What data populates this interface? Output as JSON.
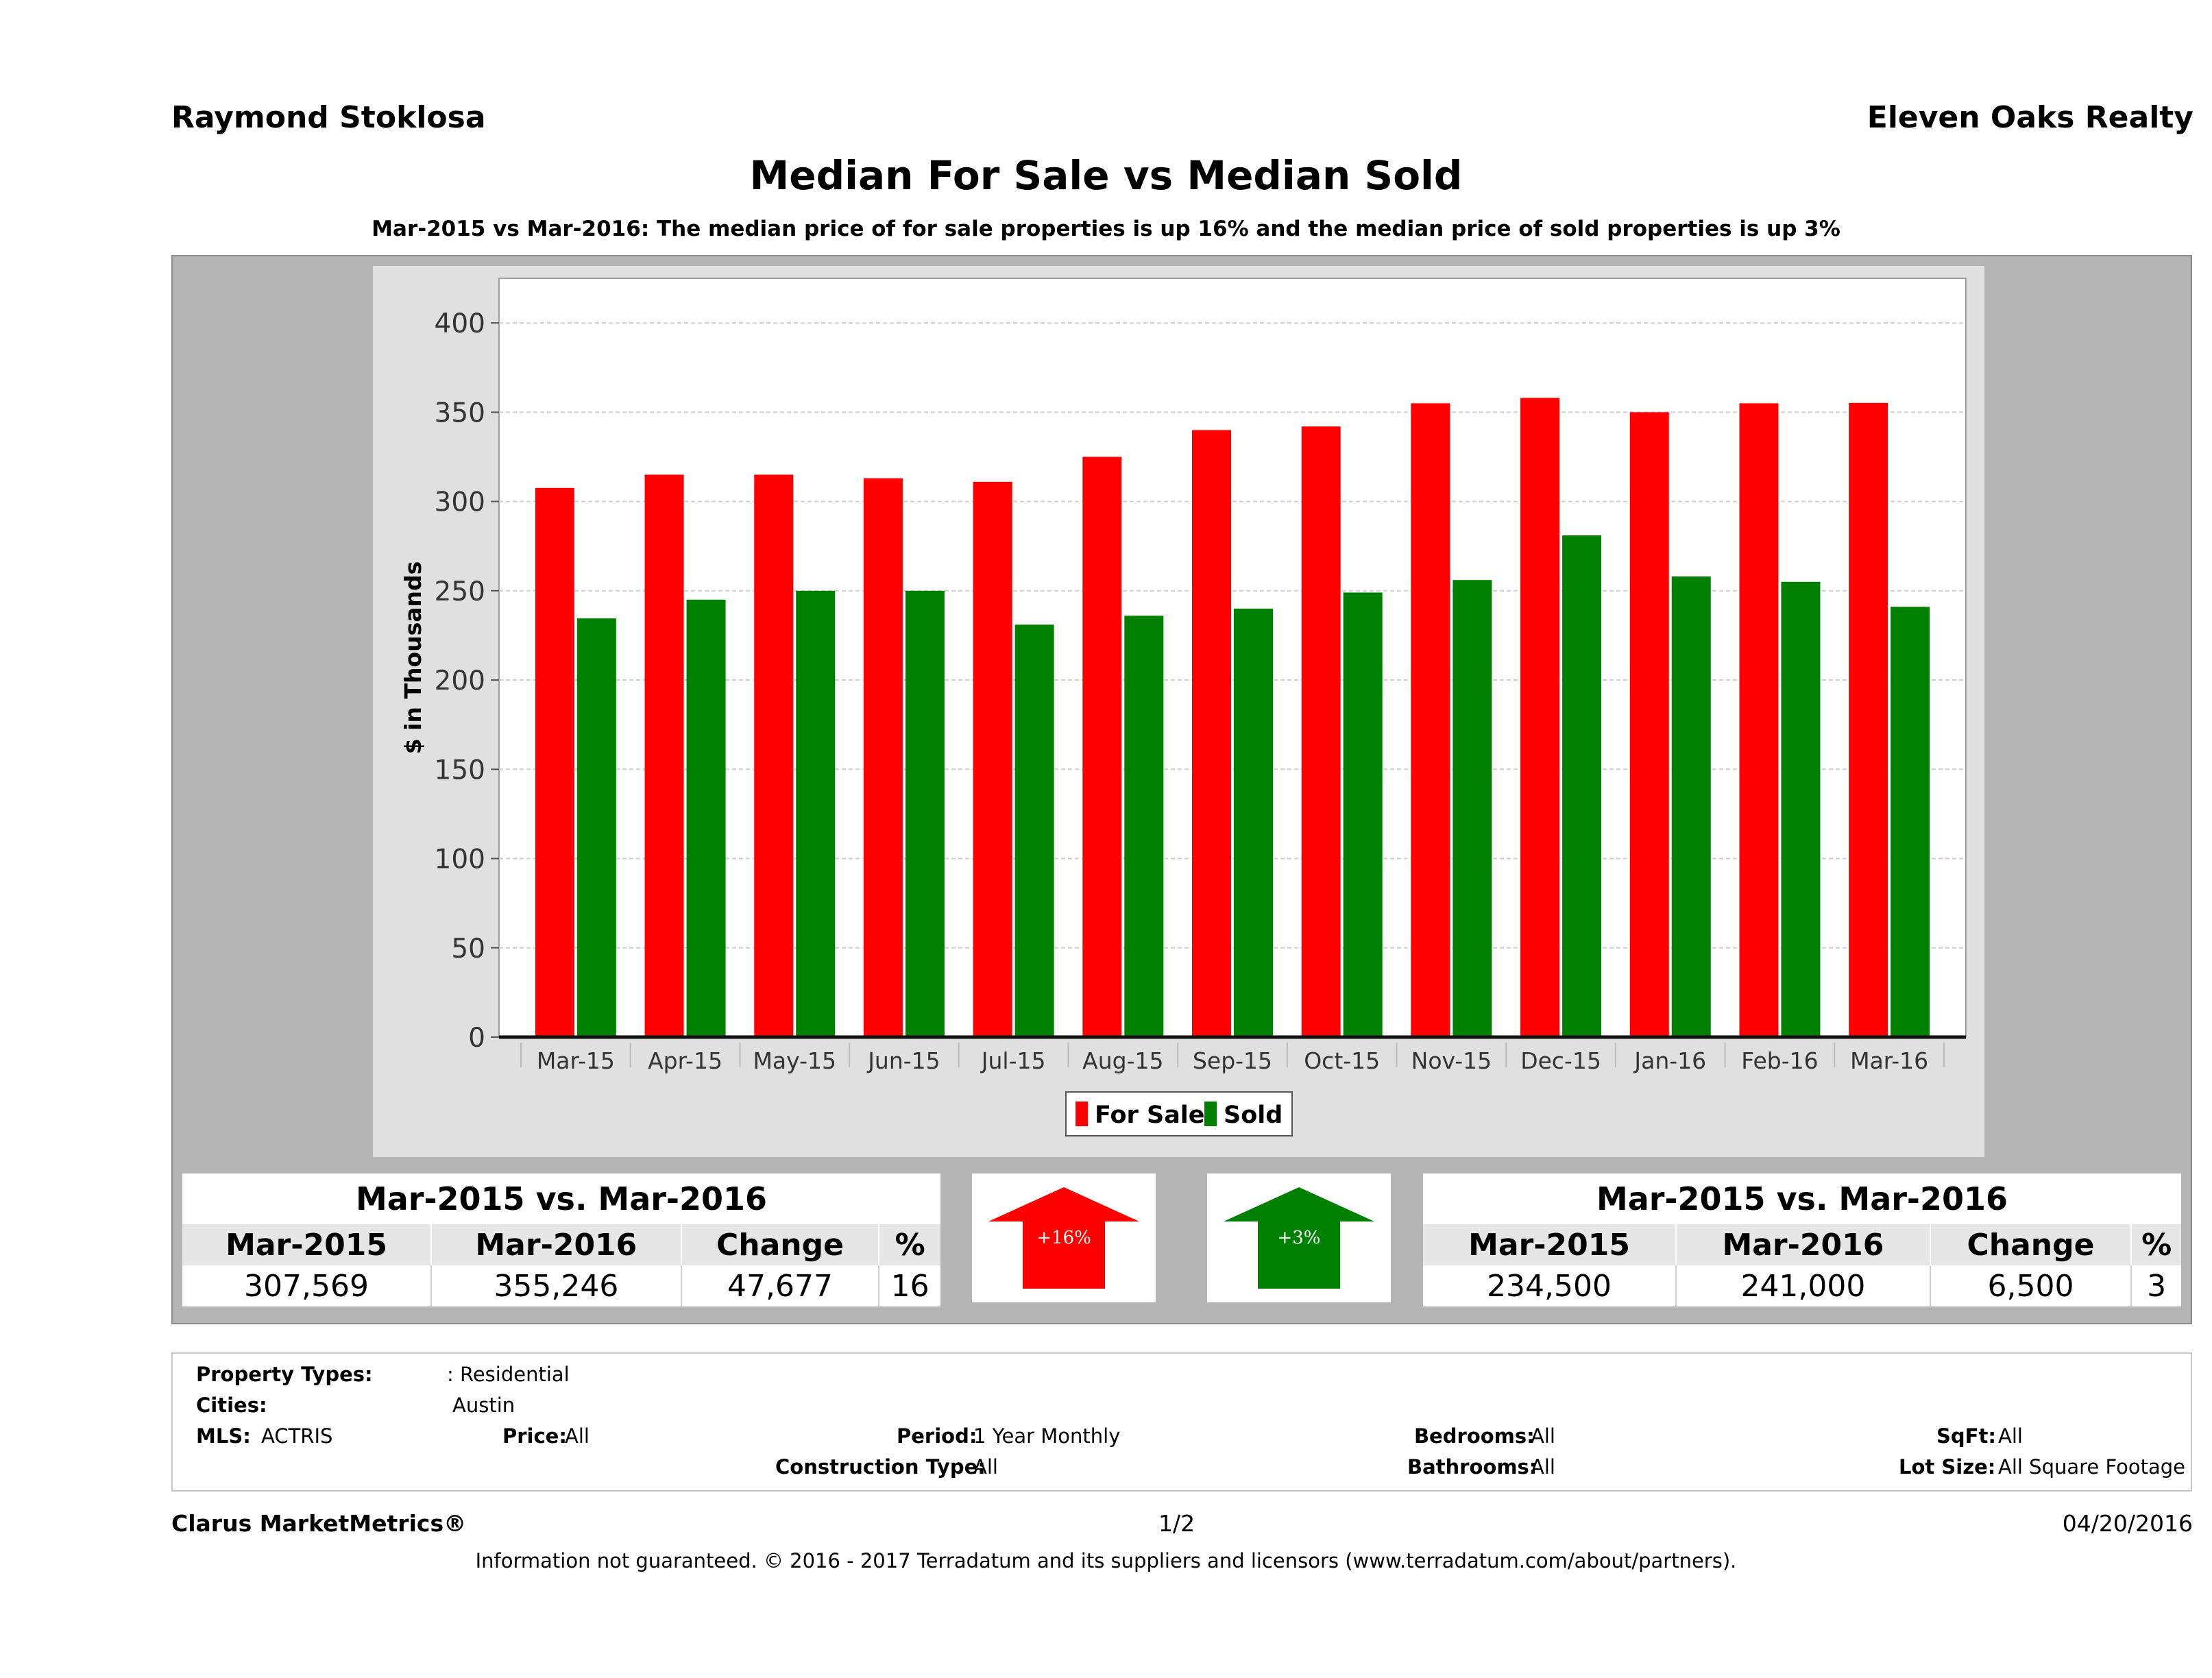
{
  "header": {
    "agent": "Raymond Stoklosa",
    "company": "Eleven Oaks Realty",
    "title": "Median For Sale vs Median Sold",
    "subtitle": "Mar-2015 vs Mar-2016: The median price of for sale properties is up 16% and the median price of sold properties is up 3%"
  },
  "chart_data": {
    "type": "bar",
    "categories": [
      "Mar-15",
      "Apr-15",
      "May-15",
      "Jun-15",
      "Jul-15",
      "Aug-15",
      "Sep-15",
      "Oct-15",
      "Nov-15",
      "Dec-15",
      "Jan-16",
      "Feb-16",
      "Mar-16"
    ],
    "series": [
      {
        "name": "For Sale",
        "color": "#ff0000",
        "values": [
          307.6,
          315,
          315,
          313,
          311,
          325,
          340,
          342,
          355,
          358,
          350,
          355,
          355.2
        ]
      },
      {
        "name": "Sold",
        "color": "#008000",
        "values": [
          234.5,
          245,
          250,
          250,
          231,
          236,
          240,
          249,
          256,
          281,
          258,
          255,
          241
        ]
      }
    ],
    "ylabel": "$ in Thousands",
    "xlabel": "",
    "ylim": [
      0,
      425
    ],
    "yticks": [
      0,
      50,
      100,
      150,
      200,
      250,
      300,
      350,
      400
    ],
    "grid": true,
    "legend": "bottom-center"
  },
  "summary_left": {
    "title": "Mar-2015 vs. Mar-2016",
    "headers": [
      "Mar-2015",
      "Mar-2016",
      "Change",
      "%"
    ],
    "values": [
      "307,569",
      "355,246",
      "47,677",
      "16"
    ]
  },
  "summary_right": {
    "title": "Mar-2015 vs. Mar-2016",
    "headers": [
      "Mar-2015",
      "Mar-2016",
      "Change",
      "%"
    ],
    "values": [
      "234,500",
      "241,000",
      "6,500",
      "3"
    ]
  },
  "arrows": {
    "for_sale": {
      "label": "+16%",
      "color": "#ff0000"
    },
    "sold": {
      "label": "+3%",
      "color": "#008000"
    }
  },
  "filters": {
    "property_types_label": "Property Types:",
    "property_types_value": ": Residential",
    "cities_label": "Cities:",
    "cities_value": "Austin",
    "mls_label": "MLS:",
    "mls_value": "ACTRIS",
    "price_label": "Price:",
    "price_value": "All",
    "period_label": "Period:",
    "period_value": "1 Year Monthly",
    "construction_label": "Construction Type:",
    "construction_value": "All",
    "bedrooms_label": "Bedrooms:",
    "bedrooms_value": "All",
    "bathrooms_label": "Bathrooms:",
    "bathrooms_value": "All",
    "sqft_label": "SqFt:",
    "sqft_value": "All",
    "lotsize_label": "Lot Size:",
    "lotsize_value": "All Square Footage"
  },
  "footer": {
    "brand": "Clarus MarketMetrics®",
    "page": "1/2",
    "date": "04/20/2016",
    "disclaimer": "Information not guaranteed. © 2016 - 2017 Terradatum and its suppliers and licensors (www.terradatum.com/about/partners)."
  }
}
